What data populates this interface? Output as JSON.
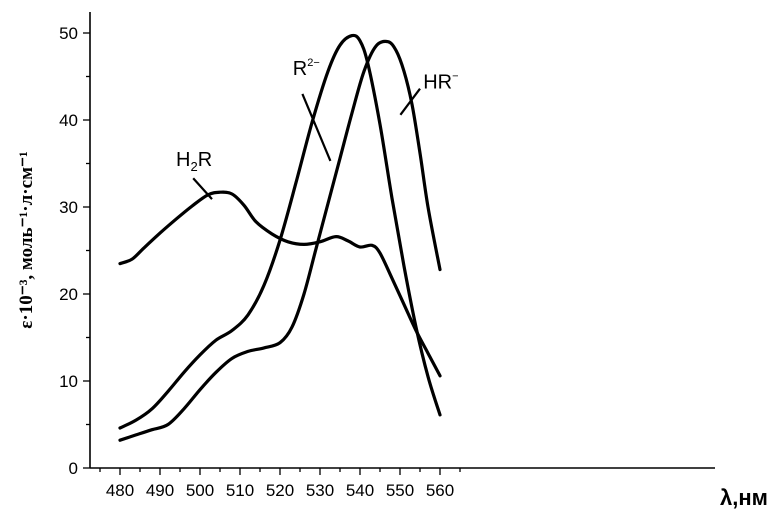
{
  "chart_data": {
    "type": "line",
    "xlabel": "λ,нм",
    "ylabel": "ε·10⁻³, моль⁻¹·л·см⁻¹",
    "xlim": [
      475,
      567
    ],
    "ylim": [
      0,
      51
    ],
    "xticks": [
      480,
      490,
      500,
      510,
      520,
      530,
      540,
      550,
      560
    ],
    "yticks": [
      0,
      10,
      20,
      30,
      40,
      50
    ],
    "grid": false,
    "series": [
      {
        "name": "H2R",
        "label_main": "H",
        "label_sub": "2",
        "label_tail": "R",
        "label_sup": "",
        "x": [
          480,
          483,
          486,
          490,
          494,
          498,
          502,
          505,
          508,
          511,
          514,
          518,
          522,
          526,
          530,
          534,
          537,
          540,
          543,
          545,
          548,
          551,
          554,
          557,
          560
        ],
        "y": [
          23.5,
          24.0,
          25.3,
          27.0,
          28.6,
          30.1,
          31.4,
          31.7,
          31.5,
          30.2,
          28.3,
          26.9,
          26.0,
          25.7,
          26.0,
          26.6,
          26.1,
          25.4,
          25.6,
          24.7,
          21.8,
          18.8,
          15.8,
          13.2,
          10.6
        ]
      },
      {
        "name": "R2-",
        "label_main": "R",
        "label_sub": "",
        "label_tail": "",
        "label_sup": "2−",
        "x": [
          480,
          484,
          488,
          492,
          496,
          500,
          504,
          508,
          512,
          516,
          520,
          524,
          528,
          532,
          535,
          538,
          540,
          542,
          545,
          548,
          551,
          554,
          557,
          560
        ],
        "y": [
          4.6,
          5.5,
          6.8,
          8.8,
          11.0,
          13.0,
          14.7,
          15.8,
          17.6,
          21.0,
          26.2,
          32.8,
          39.7,
          45.6,
          48.6,
          49.7,
          49.1,
          46.4,
          39.5,
          31.0,
          23.2,
          16.2,
          10.5,
          6.1
        ]
      },
      {
        "name": "HR-",
        "label_main": "HR",
        "label_sub": "",
        "label_tail": "",
        "label_sup": "−",
        "x": [
          480,
          484,
          488,
          492,
          496,
          500,
          504,
          508,
          512,
          516,
          520,
          523,
          526,
          529,
          532,
          535,
          538,
          541,
          544,
          547,
          549,
          551,
          553,
          555,
          557,
          560
        ],
        "y": [
          3.2,
          3.8,
          4.4,
          5.0,
          6.8,
          9.0,
          11.0,
          12.6,
          13.4,
          13.8,
          14.4,
          16.2,
          20.0,
          25.2,
          30.4,
          35.6,
          40.8,
          45.6,
          48.5,
          49.0,
          48.0,
          45.6,
          41.8,
          36.2,
          30.0,
          22.8
        ]
      }
    ],
    "label_anchor_values": [
      {
        "series": "H2R",
        "text_at": [
          494,
          34.7
        ],
        "leader_from": [
          498.3,
          33.3
        ],
        "leader_to": [
          503,
          30.9
        ]
      },
      {
        "series": "R2-",
        "text_at": [
          523.2,
          45.2
        ],
        "leader_from": [
          525.6,
          43.0
        ],
        "leader_to": [
          532.6,
          35.3
        ]
      },
      {
        "series": "HR-",
        "text_at": [
          555.8,
          43.6
        ],
        "leader_from": [
          555.0,
          43.6
        ],
        "leader_to": [
          550.1,
          40.6
        ]
      }
    ]
  }
}
